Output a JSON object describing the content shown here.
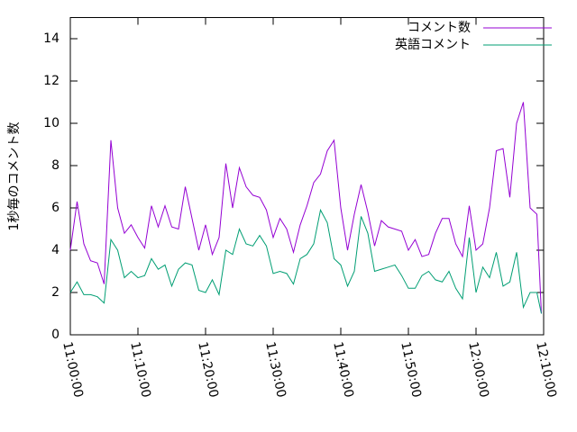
{
  "chart_data": {
    "type": "line",
    "ylabel": "1秒毎のコメント数",
    "x": [
      "11:00:00",
      "11:01:00",
      "11:02:00",
      "11:03:00",
      "11:04:00",
      "11:05:00",
      "11:06:00",
      "11:07:00",
      "11:08:00",
      "11:09:00",
      "11:10:00",
      "11:11:00",
      "11:12:00",
      "11:13:00",
      "11:14:00",
      "11:15:00",
      "11:16:00",
      "11:17:00",
      "11:18:00",
      "11:19:00",
      "11:20:00",
      "11:21:00",
      "11:22:00",
      "11:23:00",
      "11:24:00",
      "11:25:00",
      "11:26:00",
      "11:27:00",
      "11:28:00",
      "11:29:00",
      "11:30:00",
      "11:31:00",
      "11:32:00",
      "11:33:00",
      "11:34:00",
      "11:35:00",
      "11:36:00",
      "11:37:00",
      "11:38:00",
      "11:39:00",
      "11:40:00",
      "11:41:00",
      "11:42:00",
      "11:43:00",
      "11:44:00",
      "11:45:00",
      "11:46:00",
      "11:47:00",
      "11:48:00",
      "11:49:00",
      "11:50:00",
      "11:51:00",
      "11:52:00",
      "11:53:00",
      "11:54:00",
      "11:55:00",
      "11:56:00",
      "11:57:00",
      "11:58:00",
      "11:59:00",
      "12:00:00",
      "12:01:00",
      "12:02:00",
      "12:03:00",
      "12:04:00",
      "12:05:00",
      "12:06:00",
      "12:07:00",
      "12:08:00",
      "12:09:00",
      "12:09:40"
    ],
    "series": [
      {
        "name": "コメント数",
        "color": "#9400d3",
        "values": [
          4.0,
          6.3,
          4.3,
          3.5,
          3.4,
          2.4,
          9.2,
          6.0,
          4.8,
          5.2,
          4.6,
          4.1,
          6.1,
          5.1,
          6.1,
          5.1,
          5.0,
          7.0,
          5.5,
          4.0,
          5.2,
          3.8,
          4.6,
          8.1,
          6.0,
          7.9,
          7.0,
          6.6,
          6.5,
          5.9,
          4.6,
          5.5,
          5.0,
          3.9,
          5.2,
          6.1,
          7.2,
          7.6,
          8.7,
          9.2,
          6.0,
          4.0,
          5.7,
          7.1,
          5.8,
          4.2,
          5.4,
          5.1,
          5.0,
          4.9,
          4.0,
          4.5,
          3.7,
          3.8,
          4.8,
          5.5,
          5.5,
          4.3,
          3.7,
          6.1,
          4.0,
          4.3,
          6.0,
          8.7,
          8.8,
          6.5,
          10.0,
          11.0,
          6.0,
          5.7,
          1.0
        ]
      },
      {
        "name": "英語コメント",
        "color": "#009e73",
        "values": [
          2.0,
          2.5,
          1.9,
          1.9,
          1.8,
          1.5,
          4.5,
          4.0,
          2.7,
          3.0,
          2.7,
          2.8,
          3.6,
          3.1,
          3.3,
          2.3,
          3.1,
          3.4,
          3.3,
          2.1,
          2.0,
          2.6,
          1.9,
          4.0,
          3.8,
          5.0,
          4.3,
          4.2,
          4.7,
          4.2,
          2.9,
          3.0,
          2.9,
          2.4,
          3.6,
          3.8,
          4.3,
          5.9,
          5.3,
          3.6,
          3.3,
          2.3,
          3.0,
          5.6,
          4.8,
          3.0,
          3.1,
          3.2,
          3.3,
          2.8,
          2.2,
          2.2,
          2.8,
          3.0,
          2.6,
          2.5,
          3.0,
          2.2,
          1.7,
          4.6,
          2.0,
          3.2,
          2.7,
          3.9,
          2.3,
          2.5,
          3.9,
          1.3,
          2.0,
          2.0,
          1.0
        ]
      }
    ],
    "xlim": [
      "11:00:00",
      "12:10:00"
    ],
    "xticks": [
      "11:00:00",
      "11:10:00",
      "11:20:00",
      "11:30:00",
      "11:40:00",
      "11:50:00",
      "12:00:00",
      "12:10:00"
    ],
    "ylim": [
      0,
      15
    ],
    "yticks": [
      0,
      2,
      4,
      6,
      8,
      10,
      12,
      14
    ],
    "legend": "top-right"
  }
}
